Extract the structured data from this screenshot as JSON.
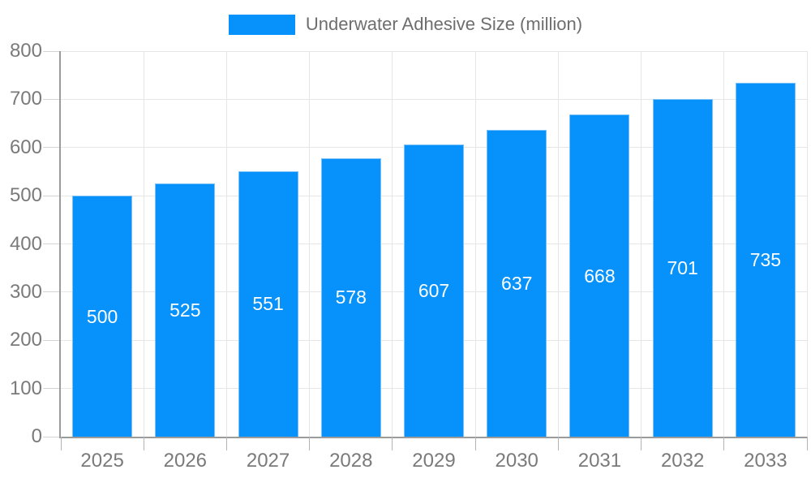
{
  "legend": {
    "label": "Underwater Adhesive Size (million)"
  },
  "chart_data": {
    "type": "bar",
    "title": "Underwater Adhesive Size (million)",
    "categories": [
      "2025",
      "2026",
      "2027",
      "2028",
      "2029",
      "2030",
      "2031",
      "2032",
      "2033"
    ],
    "values": [
      500,
      525,
      551,
      578,
      607,
      637,
      668,
      701,
      735
    ],
    "value_labels": [
      "500",
      "525",
      "551",
      "578",
      "607",
      "637",
      "668",
      "701",
      "735"
    ],
    "xlabel": "",
    "ylabel": "",
    "ylim": [
      0,
      800
    ],
    "ytick_step": 100,
    "ytick_labels": [
      "0",
      "100",
      "200",
      "300",
      "400",
      "500",
      "600",
      "700",
      "800"
    ],
    "grid": true,
    "legend_position": "top",
    "colors": {
      "bar_fill": "#0692fa",
      "bar_border": "#7cc2f9",
      "value_label": "#ffffff",
      "axis_line": "#9b9b9b",
      "gridline": "#e6e6e6",
      "y_tick": "#d4d4d4",
      "x_tick": "#b3b3b3",
      "axis_text": "#7a7a7a",
      "legend_text": "#6e6e6e"
    }
  }
}
